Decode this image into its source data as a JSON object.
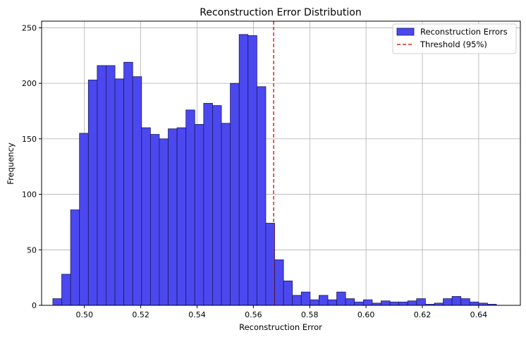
{
  "chart_data": {
    "type": "bar",
    "title": "Reconstruction Error Distribution",
    "xlabel": "Reconstruction Error",
    "ylabel": "Frequency",
    "xlim": [
      0.4848,
      0.6548
    ],
    "ylim": [
      0,
      256
    ],
    "bin_width": 0.00315,
    "bin_starts": [
      0.4888,
      0.49195,
      0.4951,
      0.49825,
      0.5014,
      0.50455,
      0.5077,
      0.51085,
      0.514,
      0.51715,
      0.5203,
      0.52345,
      0.5266,
      0.52975,
      0.5329,
      0.53605,
      0.5392,
      0.54235,
      0.5455,
      0.54865,
      0.5518,
      0.55495,
      0.5581,
      0.56125,
      0.5644,
      0.56755,
      0.5707,
      0.57385,
      0.577,
      0.58015,
      0.5833,
      0.58645,
      0.5896,
      0.59275,
      0.5959,
      0.59905,
      0.6022,
      0.60535,
      0.6085,
      0.61165,
      0.6148,
      0.61795,
      0.6211,
      0.62425,
      0.6274,
      0.63055,
      0.6337,
      0.63685,
      0.64,
      0.64315,
      0.6463
    ],
    "series": [
      {
        "name": "Reconstruction Errors",
        "values": [
          6,
          28,
          86,
          155,
          203,
          216,
          216,
          204,
          219,
          206,
          160,
          154,
          150,
          159,
          160,
          176,
          163,
          182,
          180,
          164,
          200,
          244,
          243,
          197,
          74,
          41,
          22,
          9,
          12,
          5,
          9,
          5,
          12,
          6,
          3,
          5,
          2,
          4,
          3,
          3,
          4,
          6,
          1,
          2,
          6,
          8,
          6,
          3,
          2,
          1,
          0
        ]
      }
    ],
    "threshold": {
      "name": "Threshold (95%)",
      "x": 0.5672
    },
    "x_ticks": [
      0.5,
      0.52,
      0.54,
      0.56,
      0.58,
      0.6,
      0.62,
      0.64
    ],
    "x_tick_labels": [
      "0.50",
      "0.52",
      "0.54",
      "0.56",
      "0.58",
      "0.60",
      "0.62",
      "0.64"
    ],
    "y_ticks": [
      0,
      50,
      100,
      150,
      200,
      250
    ],
    "y_tick_labels": [
      "0",
      "50",
      "100",
      "150",
      "200",
      "250"
    ],
    "grid": true,
    "legend_position": "top-right",
    "colors": {
      "bar_fill": "#4b48f0",
      "bar_edge": "#1a1a5e",
      "threshold": "#d62728",
      "grid": "#b0b0b0"
    }
  }
}
